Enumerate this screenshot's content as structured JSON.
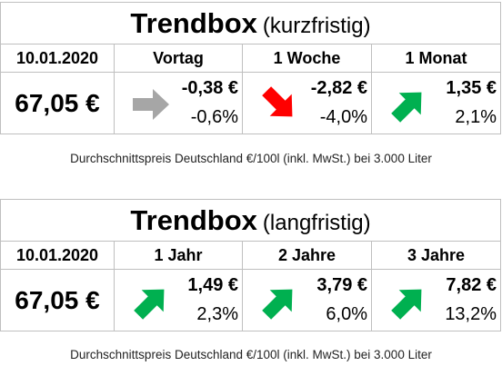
{
  "short_term": {
    "title_main": "Trendbox",
    "title_sub": "(kurzfristig)",
    "date": "10.01.2020",
    "price": "67,05 €",
    "columns": [
      {
        "label": "Vortag",
        "abs": "-0,38 €",
        "pct": "-0,6%",
        "arrow": "right-arrow-icon",
        "color": "#a6a6a6"
      },
      {
        "label": "1 Woche",
        "abs": "-2,82 €",
        "pct": "-4,0%",
        "arrow": "down-right-arrow-icon",
        "color": "#ff0000"
      },
      {
        "label": "1 Monat",
        "abs": "1,35 €",
        "pct": "2,1%",
        "arrow": "up-right-arrow-icon",
        "color": "#00b050"
      }
    ],
    "note": "Durchschnittspreis Deutschland €/100l (inkl. MwSt.) bei 3.000 Liter"
  },
  "long_term": {
    "title_main": "Trendbox",
    "title_sub": "(langfristig)",
    "date": "10.01.2020",
    "price": "67,05 €",
    "columns": [
      {
        "label": "1 Jahr",
        "abs": "1,49 €",
        "pct": "2,3%",
        "arrow": "up-right-arrow-icon",
        "color": "#00b050"
      },
      {
        "label": "2 Jahre",
        "abs": "3,79 €",
        "pct": "6,0%",
        "arrow": "up-right-arrow-icon",
        "color": "#00b050"
      },
      {
        "label": "3 Jahre",
        "abs": "7,82 €",
        "pct": "13,2%",
        "arrow": "up-right-arrow-icon",
        "color": "#00b050"
      }
    ],
    "note": "Durchschnittspreis Deutschland €/100l (inkl. MwSt.) bei 3.000 Liter"
  }
}
